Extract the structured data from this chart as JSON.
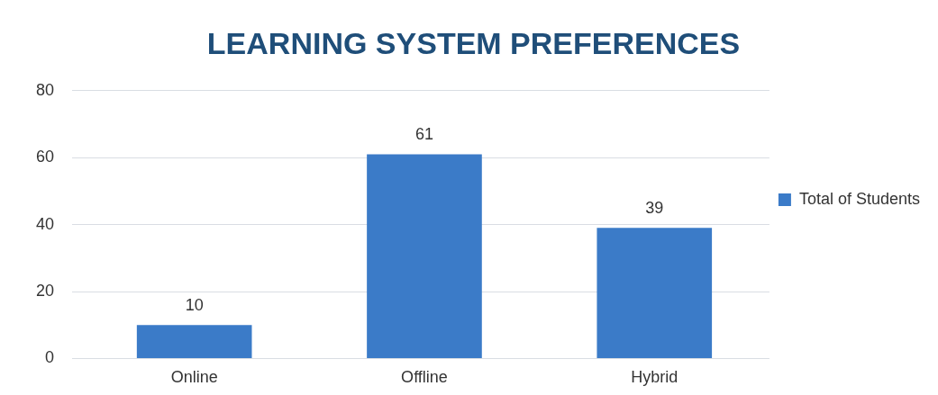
{
  "chart_data": {
    "type": "bar",
    "title": "LEARNING SYSTEM PREFERENCES",
    "categories": [
      "Online",
      "Offline",
      "Hybrid"
    ],
    "series": [
      {
        "name": "Total of Students",
        "color": "#3b7bc8",
        "values": [
          10,
          61,
          39
        ]
      }
    ],
    "ylim": [
      0,
      80
    ],
    "yticks": [
      0,
      20,
      40,
      60,
      80
    ],
    "grid": "y",
    "legend": "right",
    "data_labels": true
  }
}
